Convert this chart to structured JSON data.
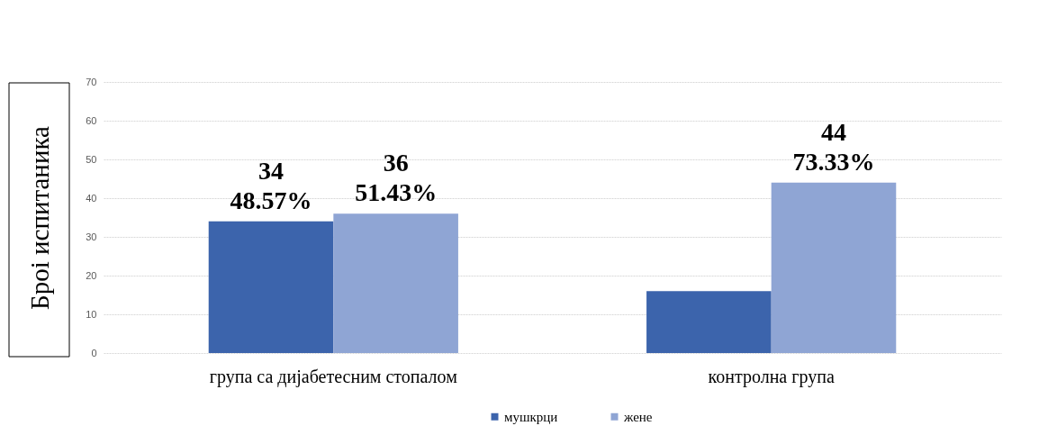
{
  "chart_data": {
    "type": "bar",
    "ylabel": "Броі испитаника",
    "categories": [
      "група са дијабетесним стопалом",
      "контролна група"
    ],
    "series": [
      {
        "name": "мушкрци",
        "color": "#3c64ac",
        "values": [
          34,
          16
        ],
        "value_labels": [
          "34\n48.57%",
          null
        ]
      },
      {
        "name": "жене",
        "color": "#8fa5d4",
        "values": [
          36,
          44
        ],
        "value_labels": [
          "36\n51.43%",
          "44\n73.33%"
        ]
      }
    ],
    "ylim": [
      0,
      70
    ],
    "yticks": [
      0,
      10,
      20,
      30,
      40,
      50,
      60,
      70
    ],
    "grid": "y",
    "legend": "bottom"
  }
}
